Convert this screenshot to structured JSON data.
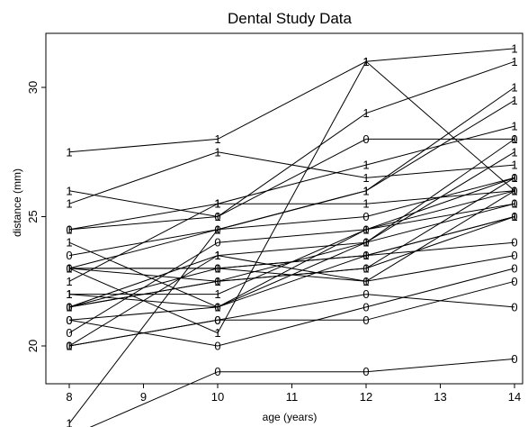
{
  "chart_data": {
    "type": "line",
    "title": "Dental Study Data",
    "xlabel": "age (years)",
    "ylabel": "distance (mm)",
    "x": [
      8,
      10,
      12,
      14
    ],
    "xlim": [
      8,
      14
    ],
    "ylim": [
      16,
      32
    ],
    "xticks": [
      8,
      9,
      10,
      11,
      12,
      13,
      14
    ],
    "yticks": [
      20,
      25,
      30
    ],
    "grid": false,
    "markers": "group code (0 or 1) plotted at each observation",
    "series": [
      {
        "marker": "0",
        "values": [
          21,
          20,
          21.5,
          23
        ]
      },
      {
        "marker": "0",
        "values": [
          21,
          21.5,
          24,
          25.5
        ]
      },
      {
        "marker": "0",
        "values": [
          20.5,
          24,
          24.5,
          26
        ]
      },
      {
        "marker": "0",
        "values": [
          23.5,
          24.5,
          25,
          26.5
        ]
      },
      {
        "marker": "0",
        "values": [
          21.5,
          23,
          22.5,
          23.5
        ]
      },
      {
        "marker": "0",
        "values": [
          20,
          21,
          21,
          22.5
        ]
      },
      {
        "marker": "0",
        "values": [
          21.5,
          22.5,
          23,
          25
        ]
      },
      {
        "marker": "0",
        "values": [
          23,
          23,
          23.5,
          24
        ]
      },
      {
        "marker": "0",
        "values": [
          20,
          21,
          22,
          21.5
        ]
      },
      {
        "marker": "0",
        "values": [
          16.5,
          19,
          19,
          19.5
        ]
      },
      {
        "marker": "0",
        "values": [
          24.5,
          25,
          28,
          28
        ]
      },
      {
        "marker": "1",
        "values": [
          26,
          25,
          29,
          31
        ]
      },
      {
        "marker": "1",
        "values": [
          21.5,
          22.5,
          23,
          26.5
        ]
      },
      {
        "marker": "1",
        "values": [
          23,
          22.5,
          24,
          27.5
        ]
      },
      {
        "marker": "1",
        "values": [
          25.5,
          27.5,
          26.5,
          27
        ]
      },
      {
        "marker": "1",
        "values": [
          20,
          23.5,
          22.5,
          26
        ]
      },
      {
        "marker": "1",
        "values": [
          24.5,
          25.5,
          27,
          28.5
        ]
      },
      {
        "marker": "1",
        "values": [
          22,
          22,
          24.5,
          26.5
        ]
      },
      {
        "marker": "1",
        "values": [
          24,
          21.5,
          24.5,
          25.5
        ]
      },
      {
        "marker": "1",
        "values": [
          23,
          20.5,
          31,
          26
        ]
      },
      {
        "marker": "1",
        "values": [
          27.5,
          28,
          31,
          31.5
        ]
      },
      {
        "marker": "1",
        "values": [
          23,
          23,
          23.5,
          25
        ]
      },
      {
        "marker": "1",
        "values": [
          21.5,
          23.5,
          24,
          28
        ]
      },
      {
        "marker": "1",
        "values": [
          17,
          24.5,
          26,
          29.5
        ]
      },
      {
        "marker": "1",
        "values": [
          22.5,
          25.5,
          25.5,
          26
        ]
      },
      {
        "marker": "1",
        "values": [
          23,
          24.5,
          26,
          30
        ]
      },
      {
        "marker": "1",
        "values": [
          22,
          21.5,
          23.5,
          25
        ]
      }
    ]
  }
}
